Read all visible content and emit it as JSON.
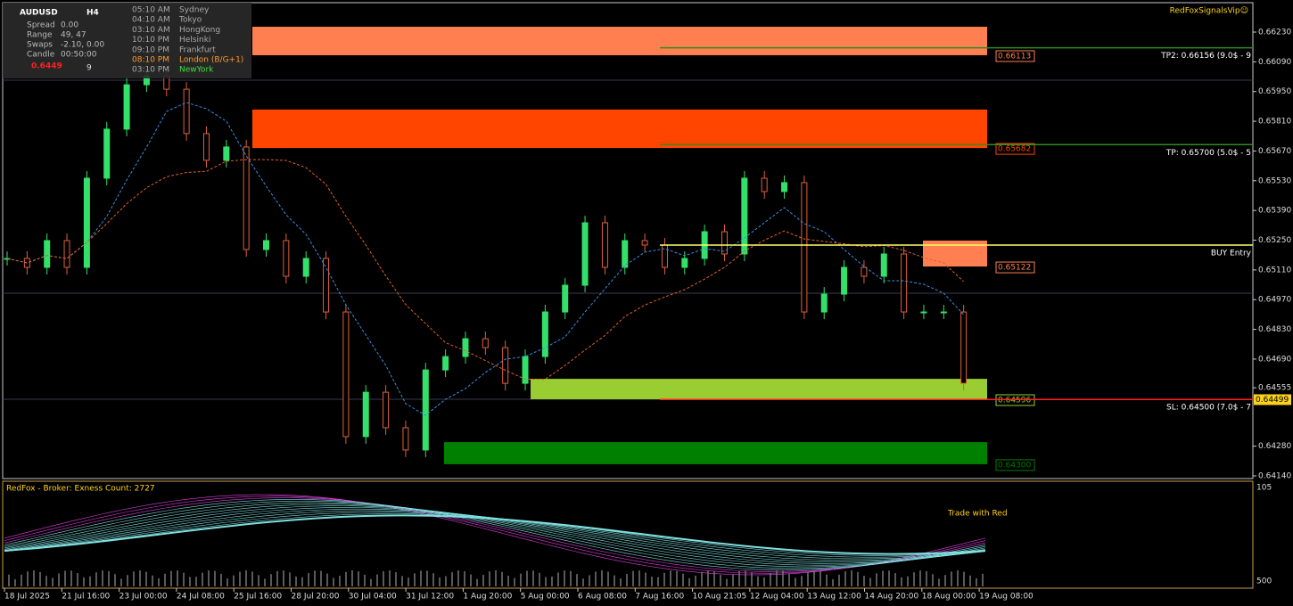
{
  "symbol": "AUDUSD",
  "timeframe": "H4",
  "info": [
    {
      "label": "Spread",
      "value": "0.00"
    },
    {
      "label": "Range",
      "value": "49, 47"
    },
    {
      "label": "Swaps",
      "value": "-2.10, 0.00"
    },
    {
      "label": "Candle",
      "value": "00:50:00"
    }
  ],
  "price": "0.6449",
  "price_digit": "9",
  "sessions": [
    {
      "time": "05:10 AM",
      "city": "Sydney"
    },
    {
      "time": "04:10 AM",
      "city": "Tokyo"
    },
    {
      "time": "03:10 AM",
      "city": "HongKong"
    },
    {
      "time": "10:10 PM",
      "city": "Helsinki"
    },
    {
      "time": "09:10 PM",
      "city": "Frankfurt"
    },
    {
      "time": "08:10 PM",
      "city": "London  (B/G+1)"
    },
    {
      "time": "03:10 PM",
      "city": "NewYork"
    }
  ],
  "brand": "RedFoxSignalsVip☺",
  "price_axis": {
    "ticks": [
      {
        "value": 0.6623,
        "label": "0.66230"
      },
      {
        "value": 0.6609,
        "label": "0.66090"
      },
      {
        "value": 0.6595,
        "label": "0.65950"
      },
      {
        "value": 0.6581,
        "label": "0.65810"
      },
      {
        "value": 0.6567,
        "label": "0.65670"
      },
      {
        "value": 0.6553,
        "label": "0.65530"
      },
      {
        "value": 0.6539,
        "label": "0.65390"
      },
      {
        "value": 0.6525,
        "label": "0.65250"
      },
      {
        "value": 0.6511,
        "label": "0.65110"
      },
      {
        "value": 0.6497,
        "label": "0.64970"
      },
      {
        "value": 0.6483,
        "label": "0.64830"
      },
      {
        "value": 0.6469,
        "label": "0.64690"
      },
      {
        "value": 0.64555,
        "label": "0.64555"
      },
      {
        "value": 0.6428,
        "label": "0.64280"
      },
      {
        "value": 0.6414,
        "label": "0.64140"
      }
    ],
    "current": {
      "value": 0.64499,
      "label": "0.64499"
    }
  },
  "zones": [
    {
      "top": 0.66255,
      "bottom": 0.66121,
      "label": "0.66113",
      "color": "#ff7f50"
    },
    {
      "top": 0.65865,
      "bottom": 0.65684,
      "label": "0.65682",
      "color": "#ff4500"
    },
    {
      "top": 0.65248,
      "bottom": 0.65126,
      "label": "0.65122",
      "color": "#ff7f50"
    },
    {
      "top": 0.64597,
      "bottom": 0.64501,
      "label": "0.64596",
      "color": "#9acd32"
    },
    {
      "top": 0.64299,
      "bottom": 0.64195,
      "label": "0.64300",
      "color": "#008000"
    }
  ],
  "levels": [
    {
      "price": 0.66156,
      "label": "TP2: 0.66156 (9.0$ - 9",
      "color": "#2e8b22"
    },
    {
      "price": 0.657,
      "label": "TP: 0.65700 (5.0$ - 5",
      "color": "#2e8b22"
    },
    {
      "price": 0.65227,
      "label": "BUY Entry",
      "color": "#ffff66"
    },
    {
      "price": 0.645,
      "label": "SL: 0.64500 (7.0$ - 7",
      "color": "#ff2020"
    }
  ],
  "dates": [
    "18 Jul 2025",
    "21 Jul 16:00",
    "23 Jul 00:00",
    "24 Jul 08:00",
    "25 Jul 16:00",
    "28 Jul 20:00",
    "30 Jul 04:00",
    "31 Jul 12:00",
    "1 Aug 20:00",
    "5 Aug 00:00",
    "6 Aug 08:00",
    "7 Aug 16:00",
    "10 Aug 21:05",
    "12 Aug 04:00",
    "13 Aug 12:00",
    "14 Aug 20:00",
    "18 Aug 00:00",
    "19 Aug 08:00"
  ],
  "indicator": {
    "label": "RedFox -  Broker: Exness    Count: 2727",
    "top": "105",
    "bottom": "500"
  },
  "banner": "Trade with Red",
  "price_series": [
    0.65164,
    0.65122,
    0.65248,
    0.65122,
    0.65542,
    0.65773,
    0.65982,
    0.66024,
    0.65961,
    0.65752,
    0.65626,
    0.65689,
    0.65206,
    0.65248,
    0.6508,
    0.65164,
    0.64912,
    0.64325,
    0.64534,
    0.64367,
    0.64262,
    0.64639,
    0.64702,
    0.64786,
    0.64744,
    0.64576,
    0.64702,
    0.64912,
    0.65038,
    0.65332,
    0.65122,
    0.65248,
    0.65227,
    0.65122,
    0.65164,
    0.6529,
    0.65185,
    0.65542,
    0.65479,
    0.65521,
    0.64912,
    0.64996,
    0.65122,
    0.6508,
    0.65185,
    0.64912,
    0.64912,
    0.64912,
    0.64576
  ]
}
